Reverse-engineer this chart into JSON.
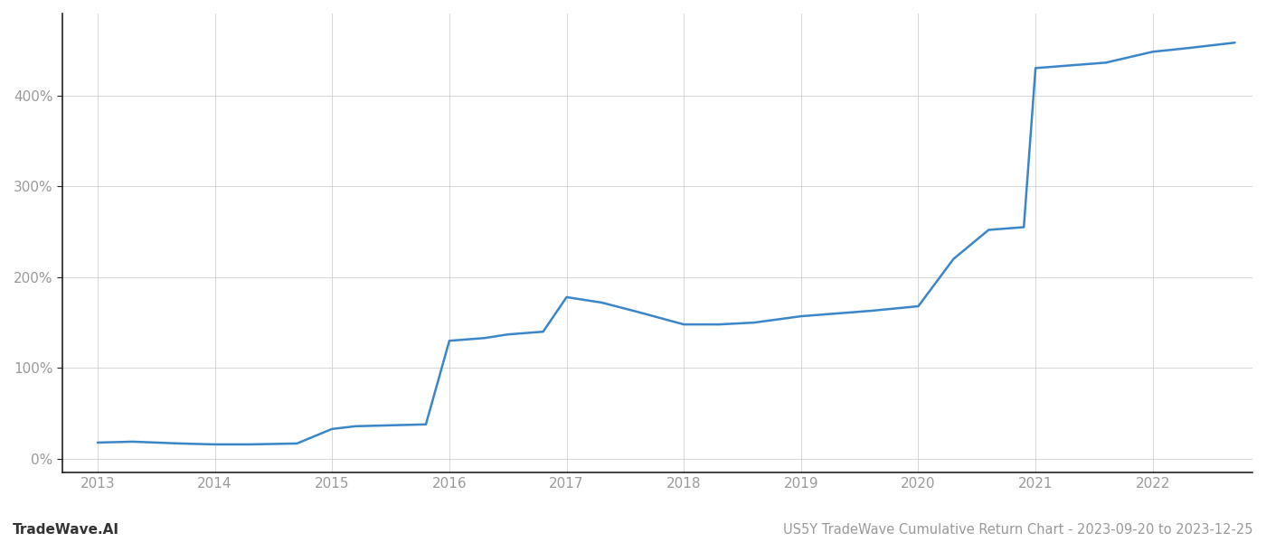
{
  "x_years": [
    2013.0,
    2013.3,
    2013.7,
    2014.0,
    2014.3,
    2014.7,
    2015.0,
    2015.2,
    2015.5,
    2015.8,
    2016.0,
    2016.3,
    2016.5,
    2016.8,
    2017.0,
    2017.3,
    2017.6,
    2018.0,
    2018.3,
    2018.6,
    2019.0,
    2019.3,
    2019.6,
    2020.0,
    2020.3,
    2020.6,
    2020.9,
    2021.0,
    2021.3,
    2021.6,
    2022.0,
    2022.3,
    2022.7
  ],
  "y_values": [
    18,
    19,
    17,
    16,
    16,
    17,
    33,
    36,
    37,
    38,
    130,
    133,
    137,
    140,
    178,
    172,
    162,
    148,
    148,
    150,
    157,
    160,
    163,
    168,
    220,
    252,
    255,
    430,
    433,
    436,
    448,
    452,
    458
  ],
  "line_color": "#3a86c8",
  "line_width": 1.8,
  "title": "US5Y TradeWave Cumulative Return Chart - 2023-09-20 to 2023-12-25",
  "watermark": "TradeWave.AI",
  "x_ticks": [
    2013,
    2014,
    2015,
    2016,
    2017,
    2018,
    2019,
    2020,
    2021,
    2022
  ],
  "y_ticks": [
    0,
    100,
    200,
    300,
    400
  ],
  "y_tick_labels": [
    "0%",
    "100%",
    "200%",
    "300%",
    "400%"
  ],
  "xlim": [
    2012.7,
    2022.85
  ],
  "ylim": [
    -15,
    490
  ],
  "background_color": "#ffffff",
  "grid_color": "#cccccc",
  "grid_alpha": 0.8,
  "title_fontsize": 10.5,
  "watermark_fontsize": 11,
  "tick_fontsize": 11,
  "tick_color": "#999999",
  "spine_color": "#222222"
}
